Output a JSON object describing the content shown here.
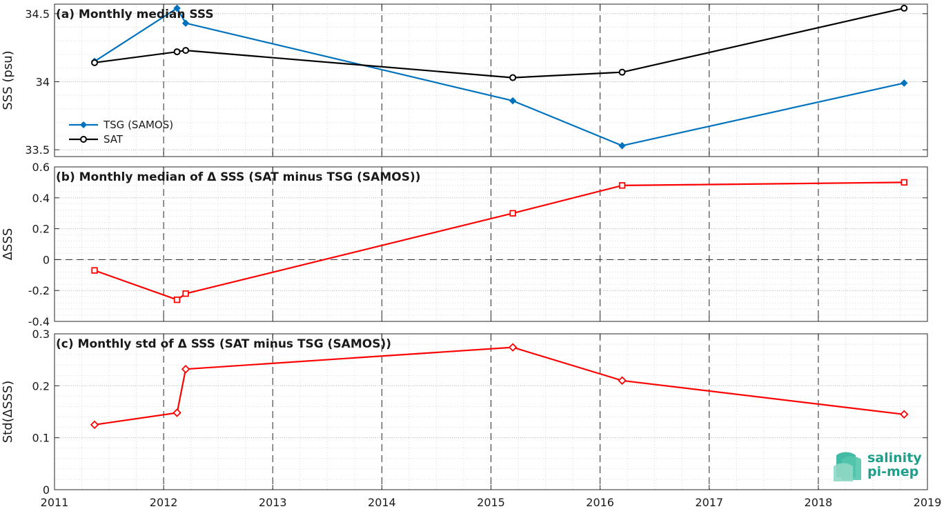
{
  "chart_data": [
    {
      "type": "line",
      "title": "(a) Monthly median SSS",
      "xlabel": "",
      "ylabel": "SSS (psu)",
      "xlim": [
        "2011-01-01",
        "2019-01-01"
      ],
      "ylim": [
        33.45,
        34.57
      ],
      "yticks": [
        "33.5",
        "34",
        "34.5"
      ],
      "grid": true,
      "legend_placement": "lower-left",
      "series": [
        {
          "name": "TSG (SAMOS)",
          "color": "#0072bd",
          "marker": "diamond",
          "x": [
            "2011-05-15",
            "2012-02-15",
            "2012-03-15",
            "2015-03-15",
            "2016-03-15",
            "2018-10-15"
          ],
          "y": [
            34.15,
            34.54,
            34.43,
            33.86,
            33.53,
            33.99
          ]
        },
        {
          "name": "SAT",
          "color": "#000000",
          "marker": "circle",
          "x": [
            "2011-05-15",
            "2012-02-15",
            "2012-03-15",
            "2015-03-15",
            "2016-03-15",
            "2018-10-15"
          ],
          "y": [
            34.14,
            34.22,
            34.23,
            34.03,
            34.07,
            34.54
          ]
        }
      ]
    },
    {
      "type": "line",
      "title": "(b) Monthly median of Δ SSS (SAT minus TSG (SAMOS))",
      "xlabel": "",
      "ylabel": "ΔSSS",
      "xlim": [
        "2011-01-01",
        "2019-01-01"
      ],
      "ylim": [
        -0.4,
        0.6
      ],
      "yticks": [
        "-0.4",
        "-0.2",
        "0",
        "0.2",
        "0.4",
        "0.6"
      ],
      "grid": true,
      "zero_line": true,
      "series": [
        {
          "color": "#ff0000",
          "marker": "square",
          "x": [
            "2011-05-15",
            "2012-02-15",
            "2012-03-15",
            "2015-03-15",
            "2016-03-15",
            "2018-10-15"
          ],
          "y": [
            -0.07,
            -0.26,
            -0.22,
            0.3,
            0.48,
            0.5
          ]
        }
      ]
    },
    {
      "type": "line",
      "title": "(c) Monthly std of Δ SSS (SAT minus TSG (SAMOS))",
      "xlabel": "",
      "ylabel": "Std(ΔSSS)",
      "xlim": [
        "2011-01-01",
        "2019-01-01"
      ],
      "ylim": [
        0,
        0.3
      ],
      "yticks": [
        "0",
        "0.1",
        "0.2",
        "0.3"
      ],
      "xticks": [
        "2011",
        "2012",
        "2013",
        "2014",
        "2015",
        "2016",
        "2017",
        "2018",
        "2019"
      ],
      "grid": true,
      "series": [
        {
          "color": "#ff0000",
          "marker": "diamond",
          "x": [
            "2011-05-15",
            "2012-02-15",
            "2012-03-15",
            "2015-03-15",
            "2016-03-15",
            "2018-10-15"
          ],
          "y": [
            0.125,
            0.148,
            0.232,
            0.274,
            0.21,
            0.145
          ]
        }
      ]
    }
  ],
  "logo": {
    "line1": "salinity",
    "line2": "pi-mep",
    "color": "#1f9e8a"
  }
}
